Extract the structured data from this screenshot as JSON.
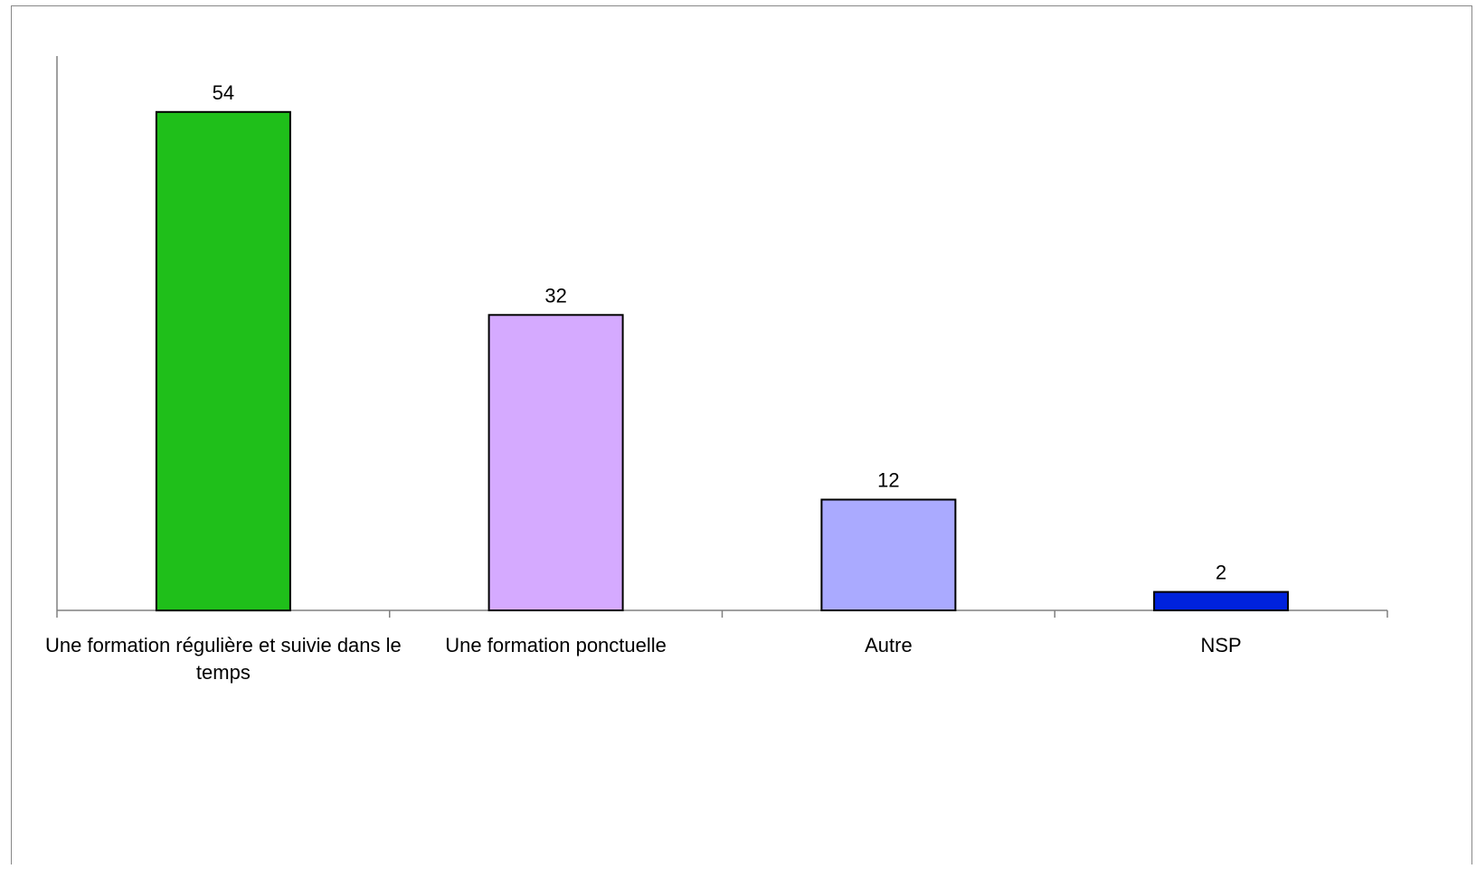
{
  "chart_data": {
    "type": "bar",
    "categories": [
      "Une formation régulière et suivie dans le temps",
      "Une formation ponctuelle",
      "Autre",
      "NSP"
    ],
    "values": [
      54,
      32,
      12,
      2
    ],
    "data_labels": [
      "54",
      "32",
      "12",
      "2"
    ],
    "colors": [
      "#1fbf1a",
      "#d5aaff",
      "#aaaaff",
      "#0022dd"
    ],
    "title": "",
    "xlabel": "",
    "ylabel": "",
    "ylim": [
      0,
      60
    ],
    "grid": false,
    "legend": "none"
  }
}
